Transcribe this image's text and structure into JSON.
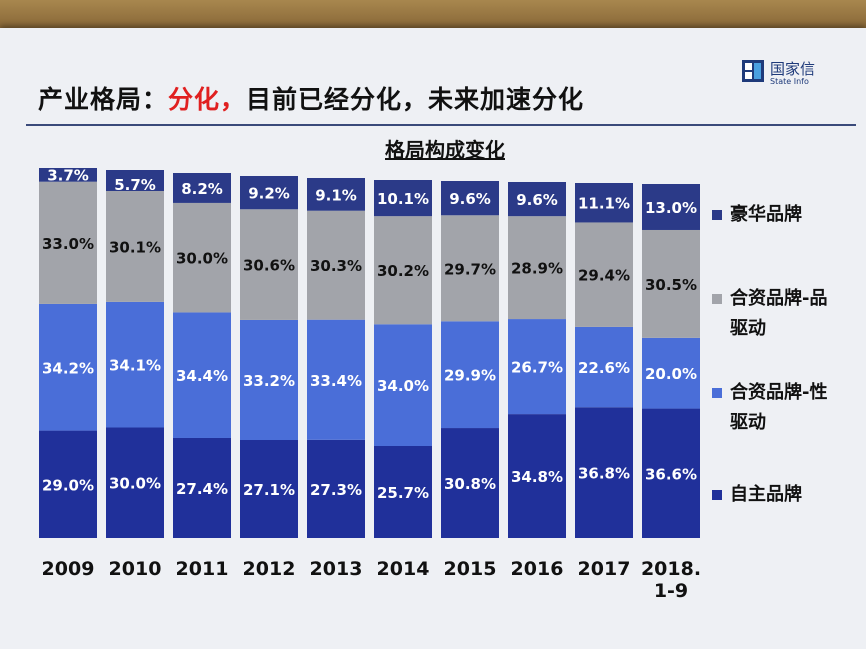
{
  "slide": {
    "title_prefix": "产业格局：",
    "title_accent": "分化，",
    "title_rest": "目前已经分化，未来加速分化",
    "logo_name": "国家信",
    "logo_sub": "State Info"
  },
  "colors": {
    "self_brand": "#20309a",
    "jv_tech": "#4a6ed8",
    "jv_brand": "#a2a4aa",
    "luxury": "#2b3a88"
  },
  "chart_data": {
    "type": "bar",
    "stacked": true,
    "normalized": true,
    "title": "格局构成变化",
    "categories": [
      "2009",
      "2010",
      "2011",
      "2012",
      "2013",
      "2014",
      "2015",
      "2016",
      "2017",
      "2018.\n1-9"
    ],
    "series": [
      {
        "name": "自主品牌",
        "color": "#20309a",
        "values": [
          29.0,
          30.0,
          27.4,
          27.1,
          27.3,
          25.7,
          30.8,
          34.8,
          36.8,
          36.6
        ],
        "labels": [
          "29.0%",
          "30.0%",
          "27.4%",
          "27.1%",
          "27.3%",
          "25.7%",
          "30.8%",
          "34.8%",
          "36.8%",
          "36.6%"
        ]
      },
      {
        "name": "合资品牌-性驱动",
        "color": "#4a6ed8",
        "values": [
          34.2,
          34.1,
          34.4,
          33.2,
          33.4,
          34.0,
          29.9,
          26.7,
          22.6,
          20.0
        ],
        "labels": [
          "34.2%",
          "34.1%",
          "34.4%",
          "33.2%",
          "33.4%",
          "34.0%",
          "29.9%",
          "26.7%",
          "22.6%",
          "20.0%"
        ]
      },
      {
        "name": "合资品牌-品驱动",
        "color": "#a2a4aa",
        "values": [
          33.0,
          30.1,
          30.0,
          30.6,
          30.3,
          30.2,
          29.7,
          28.9,
          29.4,
          30.5
        ],
        "labels": [
          "33.0%",
          "30.1%",
          "30.0%",
          "30.6%",
          "30.3%",
          "30.2%",
          "29.7%",
          "28.9%",
          "29.4%",
          "30.5%"
        ]
      },
      {
        "name": "豪华品牌",
        "color": "#2b3a88",
        "values": [
          3.7,
          5.7,
          8.2,
          9.2,
          9.1,
          10.1,
          9.6,
          9.6,
          11.1,
          13.0
        ],
        "labels": [
          "3.7%",
          "5.7%",
          "8.2%",
          "9.2%",
          "9.1%",
          "10.1%",
          "9.6%",
          "9.6%",
          "11.1%",
          "13.0%"
        ]
      }
    ],
    "legend": [
      {
        "label": "豪华品牌",
        "color": "#2b3a88"
      },
      {
        "label": "合资品牌-品\n驱动",
        "color": "#a2a4aa"
      },
      {
        "label": "合资品牌-性\n驱动",
        "color": "#4a6ed8"
      },
      {
        "label": "自主品牌",
        "color": "#20309a"
      }
    ],
    "legend_position": "right",
    "grid": false
  }
}
